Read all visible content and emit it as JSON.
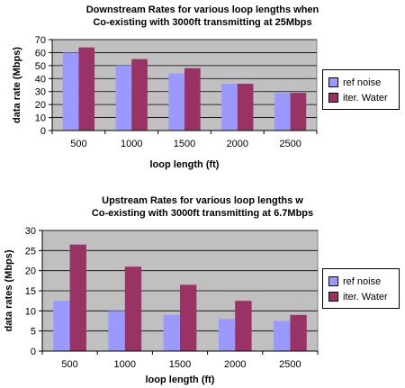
{
  "colors": {
    "ref": "#9999ff",
    "iter": "#993366",
    "plot_bg": "#c0c0c0"
  },
  "chart_data": [
    {
      "type": "bar",
      "title_line1": "Downstream Rates for various loop lengths when",
      "title_line2": "Co-existing with 3000ft transmitting at 25Mbps",
      "xlabel": "loop length (ft)",
      "ylabel": "data rate (Mbps)",
      "categories": [
        "500",
        "1000",
        "1500",
        "2000",
        "2500"
      ],
      "ylim": [
        0,
        70
      ],
      "yticks": [
        "0",
        "10",
        "20",
        "30",
        "40",
        "50",
        "60",
        "70"
      ],
      "grid": true,
      "legend_position": "right",
      "series": [
        {
          "name": "ref noise",
          "values": [
            60,
            50,
            44,
            36,
            29
          ]
        },
        {
          "name": "iter. Water",
          "values": [
            64,
            55,
            48,
            36,
            29
          ]
        }
      ]
    },
    {
      "type": "bar",
      "title_line1": "Upstream Rates for various loop lengths w",
      "title_line2": "Co-existing with 3000ft transmitting at 6.7Mbps",
      "xlabel": "loop length (ft)",
      "ylabel": "data rates (Mbps)",
      "categories": [
        "500",
        "1000",
        "1500",
        "2000",
        "2500"
      ],
      "ylim": [
        0,
        30
      ],
      "yticks": [
        "0",
        "5",
        "10",
        "15",
        "20",
        "25",
        "30"
      ],
      "grid": true,
      "legend_position": "right",
      "series": [
        {
          "name": "ref noise",
          "values": [
            12.5,
            10,
            9,
            8,
            7.5
          ]
        },
        {
          "name": "iter. Water",
          "values": [
            26.5,
            21,
            16.5,
            12.5,
            9
          ]
        }
      ]
    }
  ]
}
